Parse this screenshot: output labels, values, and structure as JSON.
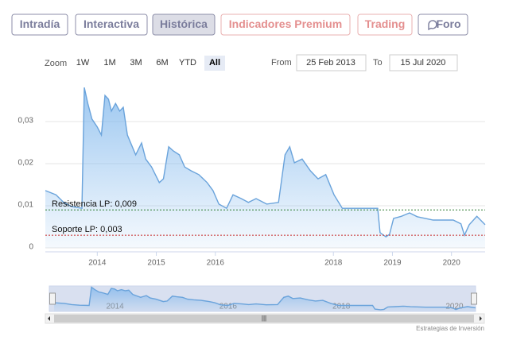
{
  "tabs": [
    "Intradía",
    "Interactiva",
    "Histórica",
    "Indicadores Premium",
    "Trading",
    "Foro"
  ],
  "active_tab": 2,
  "zoom": {
    "label": "Zoom",
    "buttons": [
      "1W",
      "1M",
      "3M",
      "6M",
      "YTD",
      "All"
    ],
    "selected": 5
  },
  "range": {
    "from_label": "From",
    "from": "25 Feb 2013",
    "to_label": "To",
    "to": "15 Jul 2020"
  },
  "credit": "Estrategias de Inversión",
  "chart_data": {
    "type": "area",
    "color": "#7cb5ec",
    "x": [
      2013.12,
      2013.3,
      2013.43,
      2013.57,
      2013.74,
      2013.78,
      2013.84,
      2013.91,
      2014.0,
      2014.07,
      2014.13,
      2014.19,
      2014.24,
      2014.31,
      2014.38,
      2014.44,
      2014.51,
      2014.65,
      2014.75,
      2014.82,
      2014.92,
      2015.05,
      2015.12,
      2015.21,
      2015.29,
      2015.39,
      2015.48,
      2015.59,
      2015.72,
      2015.86,
      2015.96,
      2016.06,
      2016.19,
      2016.3,
      2016.44,
      2016.56,
      2016.69,
      2016.87,
      2017.07,
      2017.18,
      2017.26,
      2017.34,
      2017.47,
      2017.61,
      2017.74,
      2017.87,
      2018.01,
      2018.15,
      2018.75,
      2018.79,
      2018.89,
      2018.95,
      2019.02,
      2019.15,
      2019.29,
      2019.42,
      2019.69,
      2020.03,
      2020.16,
      2020.22,
      2020.3,
      2020.43,
      2020.57
    ],
    "values": [
      0.0136,
      0.0126,
      0.0108,
      0.0098,
      0.0094,
      0.0381,
      0.0343,
      0.0306,
      0.0287,
      0.0268,
      0.0362,
      0.0353,
      0.0325,
      0.0343,
      0.0325,
      0.0334,
      0.0268,
      0.0221,
      0.0249,
      0.0211,
      0.0192,
      0.0155,
      0.0164,
      0.024,
      0.023,
      0.0221,
      0.0192,
      0.0183,
      0.0174,
      0.0155,
      0.0136,
      0.0104,
      0.0094,
      0.0126,
      0.0117,
      0.0108,
      0.0117,
      0.0104,
      0.0108,
      0.0221,
      0.024,
      0.0202,
      0.0211,
      0.0183,
      0.0164,
      0.0174,
      0.0126,
      0.0094,
      0.0094,
      0.0036,
      0.0026,
      0.0032,
      0.007,
      0.0075,
      0.0083,
      0.0074,
      0.0066,
      0.0066,
      0.0057,
      0.003,
      0.0055,
      0.0075,
      0.0055
    ],
    "xlim": [
      2013.12,
      2020.57
    ],
    "xticks": [
      2014,
      2015,
      2016,
      2018,
      2019,
      2020
    ],
    "ylim": [
      0,
      0.04
    ],
    "yticks": [
      0,
      {
        "value": 0.01,
        "label": "0,01"
      },
      {
        "value": 0.02,
        "label": "0,02"
      },
      {
        "value": 0.03,
        "label": "0,03"
      }
    ],
    "grid": true,
    "plot_lines": [
      {
        "label": "Resistencia LP: 0,009",
        "value": 0.009,
        "color": "#2e7d32"
      },
      {
        "label": "Soporte LP: 0,003",
        "value": 0.003,
        "color": "#c62828"
      }
    ],
    "navigator_xticks": [
      2014,
      2016,
      2018,
      2020
    ]
  }
}
